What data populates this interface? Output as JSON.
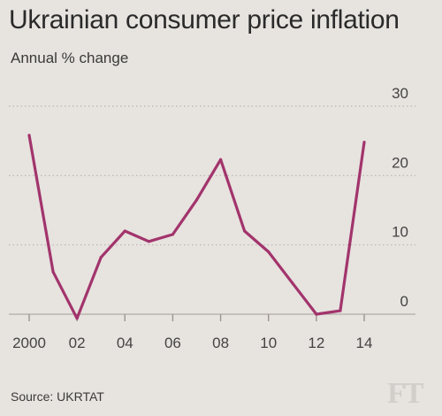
{
  "chart_data": {
    "type": "line",
    "title": "Ukrainian consumer price inflation",
    "subtitle": "Annual % change",
    "x": [
      2000,
      2001,
      2002,
      2003,
      2004,
      2005,
      2006,
      2007,
      2008,
      2009,
      2010,
      2011,
      2012,
      2013,
      2014
    ],
    "series": [
      {
        "values": [
          25.8,
          6.1,
          -0.6,
          8.2,
          12.0,
          10.5,
          11.5,
          16.5,
          22.3,
          12.0,
          9.0,
          4.5,
          0.0,
          0.5,
          24.8
        ]
      }
    ],
    "x_tick_labels": [
      "2000",
      "02",
      "04",
      "06",
      "08",
      "10",
      "12",
      "14"
    ],
    "x_tick_values": [
      2000,
      2002,
      2004,
      2006,
      2008,
      2010,
      2012,
      2014
    ],
    "y_tick_labels": [
      "0",
      "10",
      "20",
      "30"
    ],
    "y_tick_values": [
      0,
      10,
      20,
      30
    ],
    "ylim": [
      0,
      30
    ],
    "xlim": [
      2000,
      2014
    ],
    "grid": "horizontal dotted",
    "y_axis_side": "right",
    "line_color": "#a2346c",
    "source": "Source: UKRTAT",
    "logo": "FT"
  }
}
